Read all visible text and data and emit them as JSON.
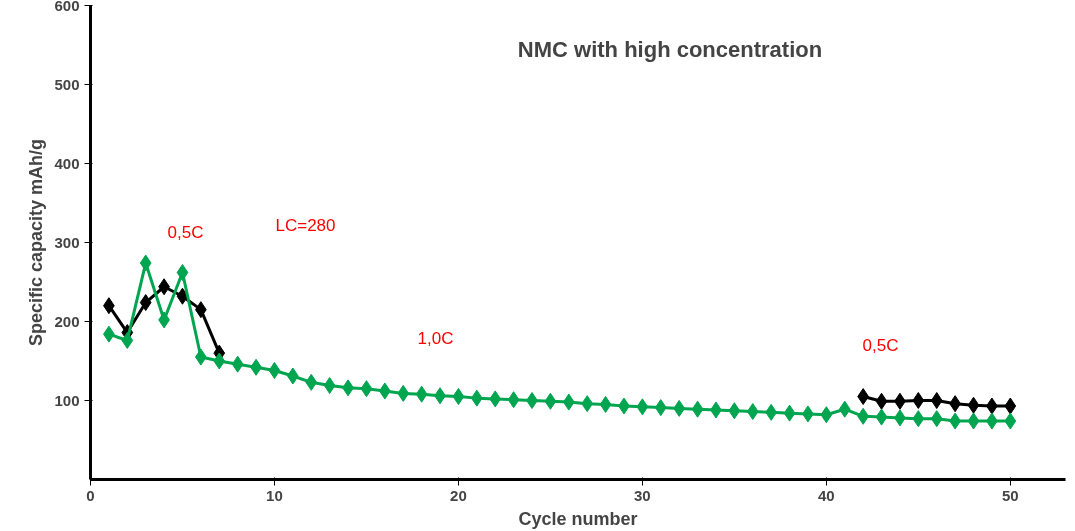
{
  "chart_data": {
    "type": "line",
    "title": "NMC with high concentration",
    "xlabel": "Cycle number",
    "ylabel": "Specific capacity mAh/g",
    "x": [
      1,
      2,
      3,
      4,
      5,
      6,
      7,
      8,
      9,
      10,
      11,
      12,
      13,
      14,
      15,
      16,
      17,
      18,
      19,
      20,
      21,
      22,
      23,
      24,
      25,
      26,
      27,
      28,
      29,
      30,
      31,
      32,
      33,
      34,
      35,
      36,
      37,
      38,
      39,
      40,
      41,
      42,
      43,
      44,
      45,
      46,
      47,
      48,
      49,
      50
    ],
    "series": [
      {
        "color": "#000000",
        "values": [
          220,
          186,
          224,
          244,
          232,
          215,
          160,
          null,
          null,
          null,
          null,
          null,
          null,
          null,
          null,
          null,
          null,
          null,
          null,
          null,
          null,
          null,
          null,
          null,
          null,
          null,
          null,
          null,
          null,
          null,
          null,
          null,
          null,
          null,
          null,
          null,
          null,
          null,
          null,
          null,
          null,
          105,
          99,
          99,
          100,
          100,
          96,
          94,
          93,
          93
        ]
      },
      {
        "color": "#00a550",
        "values": [
          184,
          176,
          274,
          202,
          262,
          155,
          150,
          146,
          142,
          138,
          131,
          123,
          119,
          116,
          115,
          112,
          109,
          108,
          106,
          105,
          103,
          102,
          101,
          100,
          99,
          98,
          96,
          95,
          93,
          92,
          91,
          90,
          89,
          88,
          87,
          86,
          85,
          84,
          83,
          82,
          89,
          80,
          79,
          78,
          77,
          77,
          74,
          74,
          74,
          74
        ]
      }
    ],
    "xlim": [
      0,
      53
    ],
    "xticks": [
      0,
      10,
      20,
      30,
      40,
      50
    ],
    "ylim": [
      0,
      600
    ],
    "yticks": [
      100,
      200,
      300,
      400,
      500,
      600
    ],
    "grid": false,
    "marker": "diamond",
    "line_style": "solid",
    "annotations": [
      "0,5C",
      "LC=280",
      "1,0C",
      "0,5C"
    ]
  }
}
